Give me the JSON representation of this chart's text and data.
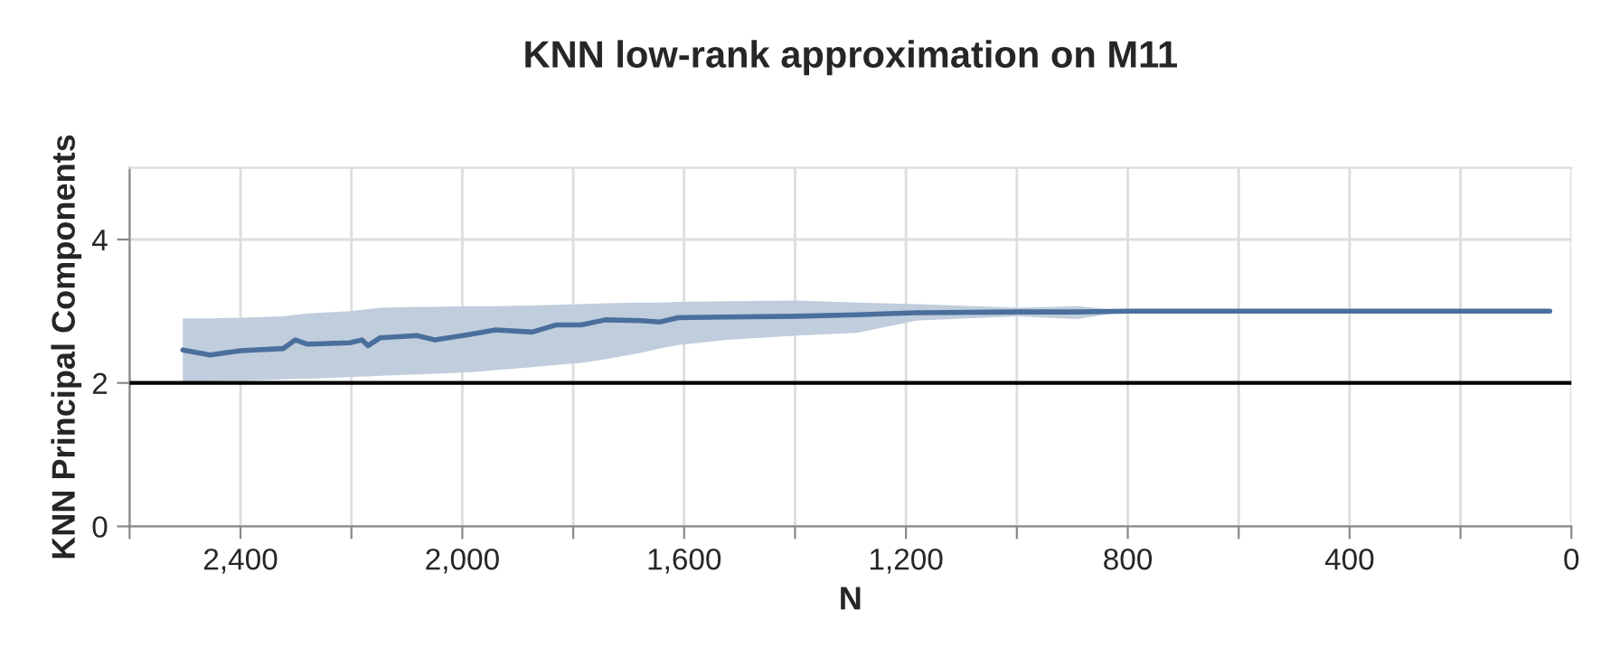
{
  "chart_data": {
    "type": "line",
    "title": "KNN low-rank approximation on M11",
    "xlabel": "N",
    "ylabel": "KNN Principal Components",
    "xlim": [
      2600,
      0
    ],
    "ylim": [
      0,
      5
    ],
    "xticks": [
      {
        "value": 2600,
        "label": null
      },
      {
        "value": 2400,
        "label": "2,400"
      },
      {
        "value": 2200,
        "label": null
      },
      {
        "value": 2000,
        "label": "2,000"
      },
      {
        "value": 1800,
        "label": null
      },
      {
        "value": 1600,
        "label": "1,600"
      },
      {
        "value": 1400,
        "label": null
      },
      {
        "value": 1200,
        "label": "1,200"
      },
      {
        "value": 1000,
        "label": null
      },
      {
        "value": 800,
        "label": "800"
      },
      {
        "value": 600,
        "label": null
      },
      {
        "value": 400,
        "label": "400"
      },
      {
        "value": 200,
        "label": null
      },
      0
    ],
    "yticks": [
      0,
      2,
      4
    ],
    "grid": true,
    "legend": false,
    "ref_lines": [
      {
        "axis": "y",
        "value": 2,
        "color": "#000000"
      }
    ],
    "series": [
      {
        "color": "#4a6f9c",
        "x": [
          2504,
          2455,
          2400,
          2323,
          2301,
          2279,
          2203,
          2181,
          2170,
          2148,
          2082,
          2049,
          1984,
          1940,
          1874,
          1830,
          1786,
          1742,
          1677,
          1644,
          1611,
          1523,
          1395,
          1288,
          1181,
          998,
          891,
          800,
          600,
          400,
          200,
          39
        ],
        "values": [
          2.46,
          2.39,
          2.45,
          2.48,
          2.6,
          2.54,
          2.56,
          2.6,
          2.52,
          2.63,
          2.66,
          2.6,
          2.68,
          2.74,
          2.71,
          2.81,
          2.81,
          2.88,
          2.87,
          2.85,
          2.91,
          2.92,
          2.93,
          2.95,
          2.98,
          2.99,
          2.99,
          3,
          3,
          3,
          3,
          3
        ],
        "upper": [
          2.9,
          2.9,
          2.91,
          2.93,
          2.95,
          2.97,
          3.0,
          3.02,
          3.03,
          3.05,
          3.06,
          3.06,
          3.07,
          3.07,
          3.08,
          3.09,
          3.1,
          3.11,
          3.12,
          3.12,
          3.13,
          3.14,
          3.15,
          3.12,
          3.1,
          3.05,
          3.07,
          3,
          3,
          3,
          3,
          3
        ],
        "lower": [
          2.0,
          2.02,
          2.03,
          2.05,
          2.06,
          2.06,
          2.08,
          2.09,
          2.09,
          2.1,
          2.12,
          2.13,
          2.15,
          2.18,
          2.22,
          2.25,
          2.28,
          2.33,
          2.42,
          2.48,
          2.53,
          2.6,
          2.66,
          2.7,
          2.87,
          2.93,
          2.89,
          3,
          3,
          3,
          3,
          3
        ]
      }
    ]
  }
}
